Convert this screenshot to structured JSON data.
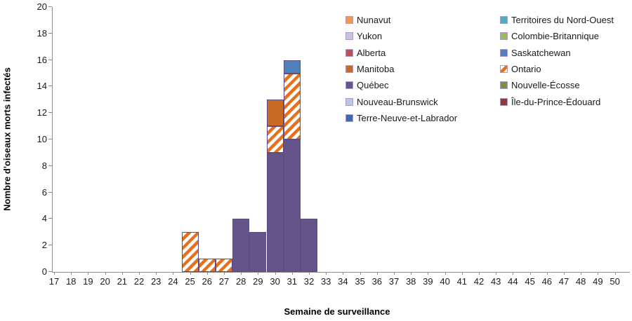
{
  "colors": {
    "background": "#FFFFFF",
    "axis": "#8C8C8C",
    "text": "#1A1A1A",
    "bar_border": "#5E4D82",
    "swatch_border": "#A99BC5",
    "hatch_background": "#FFFFFF"
  },
  "chart_data": {
    "type": "bar",
    "stacked": true,
    "title": "",
    "xlabel": "Semaine de surveillance",
    "ylabel": "Nombre d'oiseaux morts infectés",
    "x_categories": [
      "17",
      "18",
      "19",
      "20",
      "21",
      "22",
      "23",
      "24",
      "25",
      "26",
      "27",
      "28",
      "29",
      "30",
      "31",
      "32",
      "33",
      "34",
      "35",
      "36",
      "37",
      "38",
      "39",
      "40",
      "41",
      "42",
      "43",
      "44",
      "45",
      "46",
      "47",
      "48",
      "49",
      "50"
    ],
    "ylim": [
      0,
      20
    ],
    "y_ticks": [
      "0",
      "2",
      "4",
      "6",
      "8",
      "10",
      "12",
      "14",
      "16",
      "18",
      "20"
    ],
    "grid": false,
    "legend_position": "top-right-two-columns",
    "bar_series": [
      {
        "name": "Québec",
        "color": "#655489",
        "pattern": "solid",
        "values": [
          0,
          0,
          0,
          0,
          0,
          0,
          0,
          0,
          0,
          0,
          0,
          4,
          3,
          9,
          10,
          4,
          0,
          0,
          0,
          0,
          0,
          0,
          0,
          0,
          0,
          0,
          0,
          0,
          0,
          0,
          0,
          0,
          0,
          0
        ]
      },
      {
        "name": "Ontario",
        "color": "#E8701A",
        "pattern": "diagonal-hatch",
        "values": [
          0,
          0,
          0,
          0,
          0,
          0,
          0,
          0,
          3,
          1,
          1,
          0,
          0,
          2,
          5,
          0,
          0,
          0,
          0,
          0,
          0,
          0,
          0,
          0,
          0,
          0,
          0,
          0,
          0,
          0,
          0,
          0,
          0,
          0
        ]
      },
      {
        "name": "Manitoba",
        "color": "#C96B27",
        "pattern": "solid",
        "values": [
          0,
          0,
          0,
          0,
          0,
          0,
          0,
          0,
          0,
          0,
          0,
          0,
          0,
          2,
          0,
          0,
          0,
          0,
          0,
          0,
          0,
          0,
          0,
          0,
          0,
          0,
          0,
          0,
          0,
          0,
          0,
          0,
          0,
          0
        ]
      },
      {
        "name": "Saskatchewan",
        "color": "#4F81BD",
        "pattern": "solid",
        "values": [
          0,
          0,
          0,
          0,
          0,
          0,
          0,
          0,
          0,
          0,
          0,
          0,
          0,
          0,
          1,
          0,
          0,
          0,
          0,
          0,
          0,
          0,
          0,
          0,
          0,
          0,
          0,
          0,
          0,
          0,
          0,
          0,
          0,
          0
        ]
      }
    ],
    "weekly_totals": {
      "25": 3,
      "26": 1,
      "27": 1,
      "28": 4,
      "29": 3,
      "30": 13,
      "31": 16,
      "32": 4
    },
    "legend_columns": [
      [
        {
          "label": "Nunavut",
          "color": "#F79646",
          "pattern": "solid"
        },
        {
          "label": "Yukon",
          "color": "#CCC1D9",
          "pattern": "solid"
        },
        {
          "label": "Alberta",
          "color": "#C0504D",
          "pattern": "solid"
        },
        {
          "label": "Manitoba",
          "color": "#C96B27",
          "pattern": "solid"
        },
        {
          "label": "Québec",
          "color": "#655489",
          "pattern": "solid"
        },
        {
          "label": "Nouveau-Brunswick",
          "color": "#B9C7E3",
          "pattern": "solid"
        },
        {
          "label": "Terre-Neuve-et-Labrador",
          "color": "#3D6BAE",
          "pattern": "solid"
        }
      ],
      [
        {
          "label": "Territoires du Nord-Ouest",
          "color": "#4BACC6",
          "pattern": "solid"
        },
        {
          "label": "Colombie-Britannique",
          "color": "#9BBB59",
          "pattern": "solid"
        },
        {
          "label": "Saskatchewan",
          "color": "#4F81BD",
          "pattern": "solid"
        },
        {
          "label": "Ontario",
          "color": "#E8701A",
          "pattern": "diagonal-hatch"
        },
        {
          "label": "Nouvelle-Écosse",
          "color": "#77933C",
          "pattern": "solid"
        },
        {
          "label": "Île-du-Prince-Édouard",
          "color": "#953735",
          "pattern": "solid"
        }
      ]
    ]
  }
}
